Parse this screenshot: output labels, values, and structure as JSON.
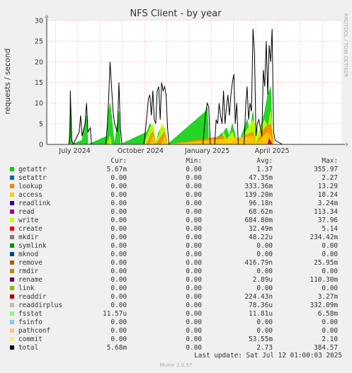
{
  "chart_data": {
    "type": "area",
    "title": "NFS Client - by year",
    "ylabel": "requests / second",
    "side_label": "RRDTOOL / TOBI OETIKER",
    "ylim": [
      0,
      30
    ],
    "y_ticks": [
      0,
      5,
      10,
      15,
      20,
      25,
      30
    ],
    "x_ticks": [
      "July 2024",
      "October 2024",
      "January 2025",
      "April 2025"
    ],
    "series": [
      {
        "name": "getattr",
        "color": "#00cc00",
        "cur": "5.67m",
        "min": "0.00",
        "avg": "1.37",
        "max": "355.97"
      },
      {
        "name": "setattr",
        "color": "#0066b3",
        "cur": "0.00",
        "min": "0.00",
        "avg": "47.35m",
        "max": "2.27"
      },
      {
        "name": "lookup",
        "color": "#ff8000",
        "cur": "0.00",
        "min": "0.00",
        "avg": "333.36m",
        "max": "13.29"
      },
      {
        "name": "access",
        "color": "#ffcc00",
        "cur": "0.00",
        "min": "0.00",
        "avg": "139.20m",
        "max": "18.24"
      },
      {
        "name": "readlink",
        "color": "#330099",
        "cur": "0.00",
        "min": "0.00",
        "avg": "96.18n",
        "max": "3.24m"
      },
      {
        "name": "read",
        "color": "#990099",
        "cur": "0.00",
        "min": "0.00",
        "avg": "68.62m",
        "max": "113.34"
      },
      {
        "name": "write",
        "color": "#ccff00",
        "cur": "0.00",
        "min": "0.00",
        "avg": "684.80m",
        "max": "37.96"
      },
      {
        "name": "create",
        "color": "#ff0000",
        "cur": "0.00",
        "min": "0.00",
        "avg": "32.49m",
        "max": "5.14"
      },
      {
        "name": "mkdir",
        "color": "#808080",
        "cur": "0.00",
        "min": "0.00",
        "avg": "48.22u",
        "max": "234.42m"
      },
      {
        "name": "symlink",
        "color": "#008f00",
        "cur": "0.00",
        "min": "0.00",
        "avg": "0.00",
        "max": "0.00"
      },
      {
        "name": "mknod",
        "color": "#00487d",
        "cur": "0.00",
        "min": "0.00",
        "avg": "0.00",
        "max": "0.00"
      },
      {
        "name": "remove",
        "color": "#b35a00",
        "cur": "0.00",
        "min": "0.00",
        "avg": "416.79n",
        "max": "25.95m"
      },
      {
        "name": "rmdir",
        "color": "#b38f00",
        "cur": "0.00",
        "min": "0.00",
        "avg": "0.00",
        "max": "0.00"
      },
      {
        "name": "rename",
        "color": "#6b006b",
        "cur": "0.00",
        "min": "0.00",
        "avg": "2.89u",
        "max": "110.30m"
      },
      {
        "name": "link",
        "color": "#8fb300",
        "cur": "0.00",
        "min": "0.00",
        "avg": "0.00",
        "max": "0.00"
      },
      {
        "name": "readdir",
        "color": "#b30000",
        "cur": "0.00",
        "min": "0.00",
        "avg": "224.43n",
        "max": "3.27m"
      },
      {
        "name": "readdirplus",
        "color": "#bebebe",
        "cur": "0.00",
        "min": "0.00",
        "avg": "78.36u",
        "max": "332.09m"
      },
      {
        "name": "fsstat",
        "color": "#80ff80",
        "cur": "11.57u",
        "min": "0.00",
        "avg": "11.81u",
        "max": "6.58m"
      },
      {
        "name": "fsinfo",
        "color": "#80c9ff",
        "cur": "0.00",
        "min": "0.00",
        "avg": "0.00",
        "max": "0.00"
      },
      {
        "name": "pathconf",
        "color": "#ffc080",
        "cur": "0.00",
        "min": "0.00",
        "avg": "0.00",
        "max": "0.00"
      },
      {
        "name": "commit",
        "color": "#ffe680",
        "cur": "0.00",
        "min": "0.00",
        "avg": "53.55m",
        "max": "2.10"
      },
      {
        "name": "total",
        "color": "#000000",
        "cur": "5.68m",
        "min": "0.00",
        "avg": "2.73",
        "max": "384.57"
      }
    ],
    "approx_points": {
      "total": [
        [
          0.03,
          0
        ],
        [
          0.075,
          0
        ],
        [
          0.079,
          2
        ],
        [
          0.08,
          13
        ],
        [
          0.085,
          1
        ],
        [
          0.09,
          0
        ],
        [
          0.11,
          3
        ],
        [
          0.115,
          7
        ],
        [
          0.12,
          2
        ],
        [
          0.13,
          5
        ],
        [
          0.135,
          10
        ],
        [
          0.14,
          3
        ],
        [
          0.148,
          4
        ],
        [
          0.152,
          0
        ],
        [
          0.2,
          0
        ],
        [
          0.205,
          4
        ],
        [
          0.21,
          11
        ],
        [
          0.215,
          20
        ],
        [
          0.22,
          14
        ],
        [
          0.225,
          8
        ],
        [
          0.23,
          5
        ],
        [
          0.24,
          3
        ],
        [
          0.245,
          15
        ],
        [
          0.25,
          4
        ],
        [
          0.255,
          0
        ],
        [
          0.33,
          0
        ],
        [
          0.34,
          7
        ],
        [
          0.345,
          11
        ],
        [
          0.35,
          12
        ],
        [
          0.355,
          7
        ],
        [
          0.36,
          13
        ],
        [
          0.365,
          6
        ],
        [
          0.37,
          5
        ],
        [
          0.375,
          13
        ],
        [
          0.38,
          14
        ],
        [
          0.385,
          6
        ],
        [
          0.39,
          15
        ],
        [
          0.395,
          13
        ],
        [
          0.4,
          14
        ],
        [
          0.405,
          12
        ],
        [
          0.41,
          4
        ],
        [
          0.415,
          0
        ],
        [
          0.53,
          0
        ],
        [
          0.54,
          8
        ],
        [
          0.545,
          10
        ],
        [
          0.55,
          9
        ],
        [
          0.555,
          0
        ],
        [
          0.57,
          0
        ],
        [
          0.575,
          6
        ],
        [
          0.58,
          5
        ],
        [
          0.585,
          10
        ],
        [
          0.59,
          7
        ],
        [
          0.595,
          5
        ],
        [
          0.6,
          13
        ],
        [
          0.605,
          5
        ],
        [
          0.61,
          9
        ],
        [
          0.615,
          12
        ],
        [
          0.62,
          7
        ],
        [
          0.625,
          12
        ],
        [
          0.63,
          15
        ],
        [
          0.635,
          17
        ],
        [
          0.64,
          5
        ],
        [
          0.645,
          10
        ],
        [
          0.65,
          0
        ],
        [
          0.67,
          0
        ],
        [
          0.675,
          9
        ],
        [
          0.68,
          14
        ],
        [
          0.685,
          6
        ],
        [
          0.69,
          10
        ],
        [
          0.695,
          8
        ],
        [
          0.7,
          28
        ],
        [
          0.705,
          22
        ],
        [
          0.71,
          2
        ],
        [
          0.715,
          5
        ],
        [
          0.72,
          6
        ],
        [
          0.725,
          4
        ],
        [
          0.73,
          2
        ],
        [
          0.735,
          18
        ],
        [
          0.74,
          14
        ],
        [
          0.745,
          25
        ],
        [
          0.75,
          12
        ],
        [
          0.755,
          24
        ],
        [
          0.76,
          20
        ],
        [
          0.765,
          28
        ],
        [
          0.77,
          3
        ],
        [
          0.775,
          1
        ],
        [
          0.8,
          0
        ],
        [
          0.98,
          0
        ]
      ],
      "getattr": [
        [
          0.03,
          0
        ],
        [
          0.075,
          0
        ],
        [
          0.08,
          10
        ],
        [
          0.085,
          0
        ],
        [
          0.12,
          1
        ],
        [
          0.135,
          7
        ],
        [
          0.14,
          0
        ],
        [
          0.205,
          2
        ],
        [
          0.21,
          8
        ],
        [
          0.215,
          10
        ],
        [
          0.22,
          7
        ],
        [
          0.225,
          3
        ],
        [
          0.23,
          0
        ],
        [
          0.245,
          8
        ],
        [
          0.25,
          0
        ],
        [
          0.34,
          3
        ],
        [
          0.35,
          5
        ],
        [
          0.36,
          4
        ],
        [
          0.37,
          0
        ],
        [
          0.38,
          3
        ],
        [
          0.39,
          4
        ],
        [
          0.4,
          4
        ],
        [
          0.41,
          0
        ],
        [
          0.54,
          8
        ],
        [
          0.545,
          9
        ],
        [
          0.55,
          0
        ],
        [
          0.6,
          3
        ],
        [
          0.61,
          4
        ],
        [
          0.62,
          2
        ],
        [
          0.63,
          5
        ],
        [
          0.64,
          2
        ],
        [
          0.65,
          0
        ],
        [
          0.68,
          6
        ],
        [
          0.69,
          3
        ],
        [
          0.7,
          8
        ],
        [
          0.71,
          0
        ],
        [
          0.74,
          8
        ],
        [
          0.75,
          12
        ],
        [
          0.76,
          14
        ],
        [
          0.765,
          4
        ],
        [
          0.77,
          0
        ],
        [
          0.98,
          0
        ]
      ],
      "write": [
        [
          0.03,
          0
        ],
        [
          0.205,
          0
        ],
        [
          0.21,
          1
        ],
        [
          0.215,
          2
        ],
        [
          0.22,
          0
        ],
        [
          0.33,
          0
        ],
        [
          0.34,
          2
        ],
        [
          0.35,
          4
        ],
        [
          0.36,
          5
        ],
        [
          0.37,
          1
        ],
        [
          0.38,
          2
        ],
        [
          0.39,
          5
        ],
        [
          0.4,
          4
        ],
        [
          0.41,
          0
        ],
        [
          0.59,
          0
        ],
        [
          0.6,
          3
        ],
        [
          0.61,
          1
        ],
        [
          0.62,
          2
        ],
        [
          0.63,
          3
        ],
        [
          0.64,
          1
        ],
        [
          0.65,
          0
        ],
        [
          0.7,
          6
        ],
        [
          0.72,
          3
        ],
        [
          0.74,
          6
        ],
        [
          0.75,
          4
        ],
        [
          0.76,
          8
        ],
        [
          0.77,
          0
        ],
        [
          0.98,
          0
        ]
      ],
      "lookup": [
        [
          0.03,
          0
        ],
        [
          0.34,
          0
        ],
        [
          0.35,
          2
        ],
        [
          0.36,
          3
        ],
        [
          0.37,
          0
        ],
        [
          0.39,
          2
        ],
        [
          0.4,
          3
        ],
        [
          0.41,
          0
        ],
        [
          0.6,
          2
        ],
        [
          0.61,
          0
        ],
        [
          0.7,
          3
        ],
        [
          0.71,
          0
        ],
        [
          0.74,
          4
        ],
        [
          0.76,
          5
        ],
        [
          0.77,
          0
        ],
        [
          0.98,
          0
        ]
      ],
      "access": [
        [
          0.03,
          0
        ],
        [
          0.35,
          0
        ],
        [
          0.36,
          2
        ],
        [
          0.37,
          0
        ],
        [
          0.39,
          0
        ],
        [
          0.4,
          2
        ],
        [
          0.41,
          0
        ],
        [
          0.7,
          2
        ],
        [
          0.71,
          0
        ],
        [
          0.75,
          3
        ],
        [
          0.76,
          2
        ],
        [
          0.77,
          0
        ],
        [
          0.98,
          0
        ]
      ],
      "read": [
        [
          0.03,
          0
        ],
        [
          0.75,
          0
        ],
        [
          0.755,
          1.5
        ],
        [
          0.76,
          0
        ],
        [
          0.98,
          0
        ]
      ],
      "create": [
        [
          0.03,
          0
        ],
        [
          0.755,
          0
        ],
        [
          0.76,
          1
        ],
        [
          0.765,
          0
        ],
        [
          0.98,
          0
        ]
      ]
    }
  },
  "last_update": "Last update: Sat Jul 12 01:00:03 2025",
  "footer": "Munin 2.0.57",
  "columns": {
    "cur": "Cur:",
    "min": "Min:",
    "avg": "Avg:",
    "max": "Max:"
  }
}
